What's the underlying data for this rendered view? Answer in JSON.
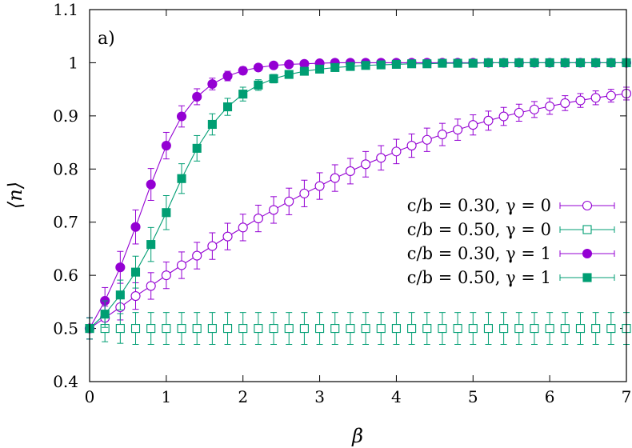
{
  "chart_data": {
    "type": "scatter",
    "panel_label": "a)",
    "xlabel": "β",
    "ylabel": "⟨n⟩",
    "xlim": [
      0,
      7
    ],
    "ylim": [
      0.4,
      1.1
    ],
    "x_ticks": [
      0,
      1,
      2,
      3,
      4,
      5,
      6,
      7
    ],
    "x_tick_labels": [
      "0",
      "1",
      "2",
      "3",
      "4",
      "5",
      "6",
      "7"
    ],
    "y_ticks": [
      0.4,
      0.5,
      0.6,
      0.7,
      0.8,
      0.9,
      1.0,
      1.1
    ],
    "y_tick_labels": [
      "0.4",
      "0.5",
      "0.6",
      "0.7",
      "0.8",
      "0.9",
      "1",
      "1.1"
    ],
    "grid": false,
    "legend_position": "right",
    "x": [
      0,
      0.2,
      0.4,
      0.6,
      0.8,
      1.0,
      1.2,
      1.4,
      1.6,
      1.8,
      2.0,
      2.2,
      2.4,
      2.6,
      2.8,
      3.0,
      3.2,
      3.4,
      3.6,
      3.8,
      4.0,
      4.2,
      4.4,
      4.6,
      4.8,
      5.0,
      5.2,
      5.4,
      5.6,
      5.8,
      6.0,
      6.2,
      6.4,
      6.6,
      6.8,
      7.0
    ],
    "series": [
      {
        "name": "c/b = 0.30, γ = 0",
        "color": "#9400d3",
        "marker": "circle-open",
        "line": true,
        "values": [
          0.5,
          0.52,
          0.54,
          0.561,
          0.58,
          0.6,
          0.619,
          0.637,
          0.655,
          0.673,
          0.69,
          0.707,
          0.723,
          0.739,
          0.754,
          0.768,
          0.783,
          0.796,
          0.809,
          0.821,
          0.833,
          0.844,
          0.855,
          0.865,
          0.874,
          0.883,
          0.891,
          0.899,
          0.906,
          0.912,
          0.918,
          0.924,
          0.929,
          0.934,
          0.938,
          0.942
        ],
        "errors": [
          0.02,
          0.022,
          0.024,
          0.025,
          0.025,
          0.025,
          0.025,
          0.025,
          0.025,
          0.025,
          0.025,
          0.025,
          0.025,
          0.025,
          0.025,
          0.025,
          0.025,
          0.024,
          0.024,
          0.023,
          0.023,
          0.022,
          0.022,
          0.021,
          0.02,
          0.019,
          0.018,
          0.017,
          0.016,
          0.015,
          0.015,
          0.014,
          0.013,
          0.013,
          0.012,
          0.012
        ]
      },
      {
        "name": "c/b = 0.50, γ = 0",
        "color": "#009e73",
        "marker": "square-open",
        "line": false,
        "values": [
          0.5,
          0.5,
          0.5,
          0.5,
          0.5,
          0.5,
          0.5,
          0.5,
          0.5,
          0.5,
          0.5,
          0.5,
          0.5,
          0.5,
          0.5,
          0.5,
          0.5,
          0.5,
          0.5,
          0.5,
          0.5,
          0.5,
          0.5,
          0.5,
          0.5,
          0.5,
          0.5,
          0.5,
          0.5,
          0.5,
          0.5,
          0.5,
          0.5,
          0.5,
          0.5,
          0.5
        ],
        "errors": [
          0.02,
          0.025,
          0.028,
          0.03,
          0.03,
          0.03,
          0.03,
          0.03,
          0.03,
          0.03,
          0.03,
          0.03,
          0.03,
          0.03,
          0.03,
          0.03,
          0.03,
          0.03,
          0.03,
          0.03,
          0.03,
          0.03,
          0.03,
          0.03,
          0.03,
          0.03,
          0.03,
          0.03,
          0.03,
          0.03,
          0.03,
          0.03,
          0.03,
          0.03,
          0.03,
          0.03
        ]
      },
      {
        "name": "c/b = 0.30, γ = 1",
        "color": "#9400d3",
        "marker": "circle-filled",
        "line": true,
        "values": [
          0.5,
          0.552,
          0.615,
          0.691,
          0.771,
          0.844,
          0.899,
          0.936,
          0.96,
          0.975,
          0.985,
          0.991,
          0.995,
          0.997,
          0.998,
          0.999,
          1.0,
          1.0,
          1.0,
          1.0,
          1.0,
          1.0,
          1.0,
          1.0,
          1.0,
          1.0,
          1.0,
          1.0,
          1.0,
          1.0,
          1.0,
          1.0,
          1.0,
          1.0,
          1.0,
          1.0
        ],
        "errors": [
          0.02,
          0.025,
          0.03,
          0.032,
          0.03,
          0.025,
          0.02,
          0.015,
          0.011,
          0.009,
          0.007,
          0.005,
          0.004,
          0.003,
          0.003,
          0.003,
          0.003,
          0.003,
          0.003,
          0.003,
          0.003,
          0.003,
          0.003,
          0.003,
          0.003,
          0.003,
          0.003,
          0.003,
          0.003,
          0.003,
          0.003,
          0.003,
          0.003,
          0.003,
          0.003,
          0.003
        ]
      },
      {
        "name": "c/b = 0.50, γ = 1",
        "color": "#009e73",
        "marker": "square-filled",
        "line": true,
        "values": [
          0.5,
          0.527,
          0.563,
          0.606,
          0.658,
          0.718,
          0.782,
          0.839,
          0.884,
          0.917,
          0.941,
          0.958,
          0.97,
          0.978,
          0.984,
          0.988,
          0.991,
          0.993,
          0.995,
          0.996,
          0.997,
          0.998,
          0.998,
          0.999,
          0.999,
          0.999,
          1.0,
          1.0,
          1.0,
          1.0,
          1.0,
          1.0,
          1.0,
          1.0,
          1.0,
          1.0
        ],
        "errors": [
          0.02,
          0.025,
          0.028,
          0.03,
          0.032,
          0.032,
          0.028,
          0.024,
          0.02,
          0.016,
          0.013,
          0.01,
          0.008,
          0.007,
          0.006,
          0.005,
          0.004,
          0.004,
          0.003,
          0.003,
          0.003,
          0.003,
          0.003,
          0.003,
          0.003,
          0.003,
          0.003,
          0.003,
          0.003,
          0.003,
          0.003,
          0.003,
          0.003,
          0.003,
          0.003,
          0.003
        ]
      }
    ]
  }
}
